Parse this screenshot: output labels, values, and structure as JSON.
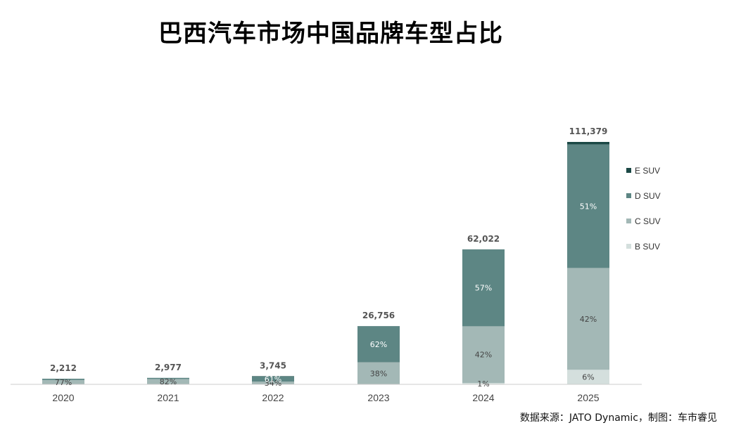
{
  "chart_data": {
    "type": "bar",
    "stacked": true,
    "title": "巴西汽车市场中国品牌车型占比",
    "categories": [
      "2020",
      "2021",
      "2022",
      "2023",
      "2024",
      "2025"
    ],
    "totals": [
      2212,
      2977,
      3745,
      26756,
      62022,
      111379
    ],
    "total_labels": [
      "2,212",
      "2,977",
      "3,745",
      "26,756",
      "62,022",
      "111,379"
    ],
    "series": [
      {
        "name": "B SUV",
        "color": "#d4dfdd",
        "shares": [
          0,
          0,
          0,
          0,
          1,
          6
        ],
        "labels": [
          "",
          "",
          "",
          "",
          "1%",
          "6%"
        ]
      },
      {
        "name": "C SUV",
        "color": "#a3b8b6",
        "shares": [
          77,
          82,
          34,
          38,
          42,
          42
        ],
        "labels": [
          "77%",
          "82%",
          "34%",
          "38%",
          "42%",
          "42%"
        ]
      },
      {
        "name": "D SUV",
        "color": "#5d8684",
        "shares": [
          23,
          18,
          61,
          62,
          57,
          51
        ],
        "labels": [
          "",
          "",
          "61%",
          "62%",
          "57%",
          "51%"
        ]
      },
      {
        "name": "E SUV",
        "color": "#1b4845",
        "shares": [
          0,
          0,
          5,
          0,
          0,
          1
        ],
        "labels": [
          "",
          "",
          "",
          "",
          "",
          ""
        ]
      }
    ],
    "legend_position": "right",
    "grid": false
  },
  "source": "数据来源：JATO Dynamic，制图：车市睿见"
}
